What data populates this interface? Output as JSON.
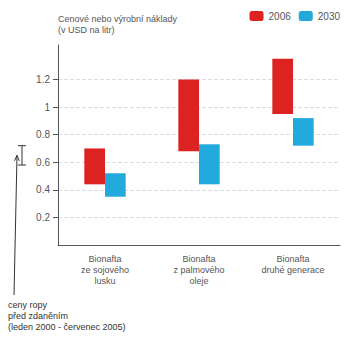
{
  "chart_data": {
    "type": "range_bar",
    "ylabel": "Cenové nebo výrobní náklady\n(v USD na litr)",
    "categories": [
      "Bionafta\nze sojového\nlusku",
      "Bionafta\nz palmového\noleje",
      "Bionafta\ndruhé generace"
    ],
    "series": [
      {
        "name": "2006",
        "color": "#dd2222",
        "values": [
          [
            0.44,
            0.7
          ],
          [
            0.68,
            1.2
          ],
          [
            0.95,
            1.35
          ]
        ]
      },
      {
        "name": "2030",
        "color": "#22aadd",
        "values": [
          [
            0.35,
            0.52
          ],
          [
            0.44,
            0.73
          ],
          [
            0.72,
            0.92
          ]
        ]
      }
    ],
    "ylim": [
      0.0,
      1.45
    ],
    "yticks": [
      0.2,
      0.4,
      0.6,
      0.8,
      1.0,
      1.2
    ],
    "grid": true,
    "legend": "upper right",
    "annotations": [
      {
        "text": "ceny ropy\npřed zdaněním\n(leden 2000 - červenec 2005)",
        "y_range": [
          0.58,
          0.72
        ]
      }
    ]
  }
}
